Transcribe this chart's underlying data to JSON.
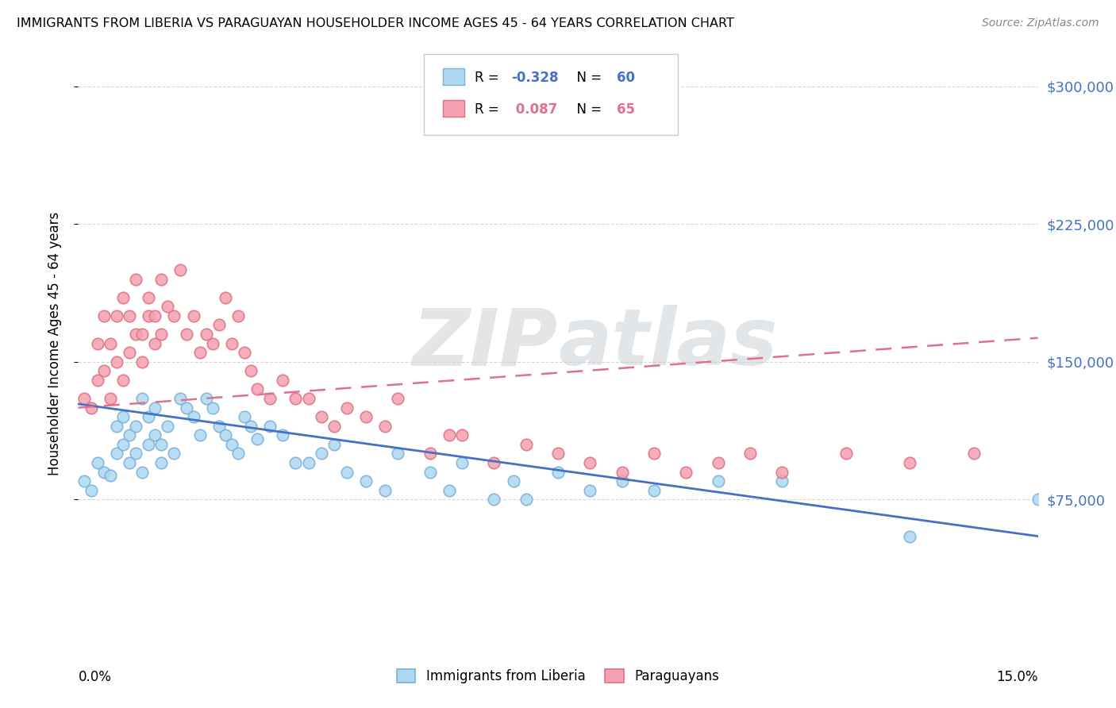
{
  "title": "IMMIGRANTS FROM LIBERIA VS PARAGUAYAN HOUSEHOLDER INCOME AGES 45 - 64 YEARS CORRELATION CHART",
  "source": "Source: ZipAtlas.com",
  "ylabel": "Householder Income Ages 45 - 64 years",
  "xlim": [
    0.0,
    0.15
  ],
  "ylim": [
    0,
    320000
  ],
  "ytick_values": [
    75000,
    150000,
    225000,
    300000
  ],
  "watermark_zip": "ZIP",
  "watermark_atlas": "atlas",
  "liberia_color": "#add8f0",
  "liberia_edge": "#7ab0d8",
  "paraguay_color": "#f4a0b0",
  "paraguay_edge": "#e07080",
  "line_blue": "#4472c4",
  "line_pink": "#e07090",
  "background_color": "#ffffff",
  "grid_color": "#cccccc",
  "blue_line_x0": 0.0,
  "blue_line_y0": 127000,
  "blue_line_x1": 0.15,
  "blue_line_y1": 55000,
  "pink_line_x0": 0.0,
  "pink_line_y0": 125000,
  "pink_line_x1": 0.15,
  "pink_line_y1": 163000,
  "liberia_x": [
    0.001,
    0.002,
    0.003,
    0.004,
    0.005,
    0.006,
    0.006,
    0.007,
    0.007,
    0.008,
    0.008,
    0.009,
    0.009,
    0.01,
    0.01,
    0.011,
    0.011,
    0.012,
    0.012,
    0.013,
    0.013,
    0.014,
    0.015,
    0.016,
    0.017,
    0.018,
    0.019,
    0.02,
    0.021,
    0.022,
    0.023,
    0.024,
    0.025,
    0.026,
    0.027,
    0.028,
    0.03,
    0.032,
    0.034,
    0.036,
    0.038,
    0.04,
    0.042,
    0.045,
    0.048,
    0.05,
    0.055,
    0.058,
    0.06,
    0.065,
    0.068,
    0.07,
    0.075,
    0.08,
    0.085,
    0.09,
    0.1,
    0.11,
    0.13,
    0.15
  ],
  "liberia_y": [
    85000,
    80000,
    95000,
    90000,
    88000,
    100000,
    115000,
    105000,
    120000,
    95000,
    110000,
    100000,
    115000,
    90000,
    130000,
    105000,
    120000,
    110000,
    125000,
    95000,
    105000,
    115000,
    100000,
    130000,
    125000,
    120000,
    110000,
    130000,
    125000,
    115000,
    110000,
    105000,
    100000,
    120000,
    115000,
    108000,
    115000,
    110000,
    95000,
    95000,
    100000,
    105000,
    90000,
    85000,
    80000,
    100000,
    90000,
    80000,
    95000,
    75000,
    85000,
    75000,
    90000,
    80000,
    85000,
    80000,
    85000,
    85000,
    55000,
    75000
  ],
  "paraguay_x": [
    0.001,
    0.002,
    0.003,
    0.003,
    0.004,
    0.004,
    0.005,
    0.005,
    0.006,
    0.006,
    0.007,
    0.007,
    0.008,
    0.008,
    0.009,
    0.009,
    0.01,
    0.01,
    0.011,
    0.011,
    0.012,
    0.012,
    0.013,
    0.013,
    0.014,
    0.015,
    0.016,
    0.017,
    0.018,
    0.019,
    0.02,
    0.021,
    0.022,
    0.023,
    0.024,
    0.025,
    0.026,
    0.027,
    0.028,
    0.03,
    0.032,
    0.034,
    0.036,
    0.038,
    0.04,
    0.042,
    0.045,
    0.048,
    0.05,
    0.055,
    0.058,
    0.06,
    0.065,
    0.07,
    0.075,
    0.08,
    0.085,
    0.09,
    0.095,
    0.1,
    0.105,
    0.11,
    0.12,
    0.13,
    0.14
  ],
  "paraguay_y": [
    130000,
    125000,
    140000,
    160000,
    145000,
    175000,
    130000,
    160000,
    150000,
    175000,
    140000,
    185000,
    155000,
    175000,
    165000,
    195000,
    150000,
    165000,
    175000,
    185000,
    160000,
    175000,
    165000,
    195000,
    180000,
    175000,
    200000,
    165000,
    175000,
    155000,
    165000,
    160000,
    170000,
    185000,
    160000,
    175000,
    155000,
    145000,
    135000,
    130000,
    140000,
    130000,
    130000,
    120000,
    115000,
    125000,
    120000,
    115000,
    130000,
    100000,
    110000,
    110000,
    95000,
    105000,
    100000,
    95000,
    90000,
    100000,
    90000,
    95000,
    100000,
    90000,
    100000,
    95000,
    100000
  ]
}
